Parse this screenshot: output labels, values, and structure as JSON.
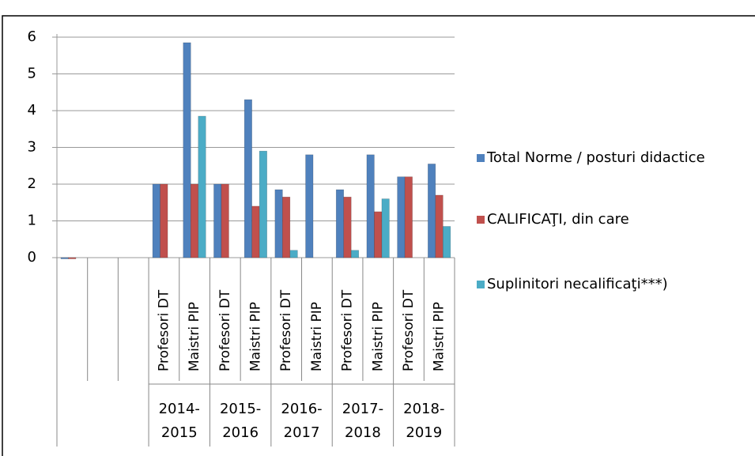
{
  "chart_data": {
    "type": "bar",
    "categories": [
      "",
      null,
      null,
      "Profesori DT",
      "Maistri PIP",
      "Profesori DT",
      "Maistri PIP",
      "Profesori DT",
      "Maistri PIP",
      "Profesori DT",
      "Maistri PIP",
      "Profesori DT",
      "Maistri PIP"
    ],
    "category_groups": [
      [
        "2014-",
        "2015"
      ],
      [
        "2015-",
        "2016"
      ],
      [
        "2016-",
        "2017"
      ],
      [
        "2017-",
        "2018"
      ],
      [
        "2018-",
        "2019"
      ]
    ],
    "series": [
      {
        "name": "Total Norme / posturi didactice",
        "color": "#4f81bd",
        "values": [
          0,
          null,
          null,
          2,
          5.85,
          2,
          4.3,
          1.85,
          2.8,
          1.85,
          2.8,
          2.2,
          2.55
        ]
      },
      {
        "name": "CALIFICAŢI, din care",
        "color": "#c0504d",
        "values": [
          0,
          null,
          null,
          2,
          2,
          2,
          1.4,
          1.65,
          null,
          1.65,
          1.25,
          2.2,
          1.7
        ]
      },
      {
        "name": "Suplinitori necalificaţi***)",
        "color": "#4bacc6",
        "values": [
          null,
          null,
          null,
          null,
          3.85,
          null,
          2.9,
          0.2,
          null,
          0.2,
          1.6,
          null,
          0.85
        ]
      }
    ],
    "ylim": [
      0,
      6
    ],
    "yticks": [
      0,
      1,
      2,
      3,
      4,
      5,
      6
    ],
    "grid": true,
    "legend": "right"
  }
}
